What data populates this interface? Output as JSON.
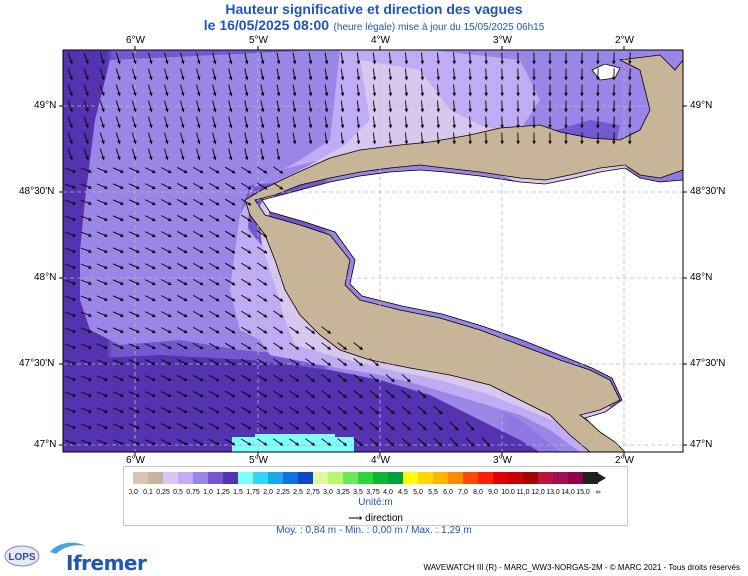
{
  "header": {
    "title": "Hauteur significative et direction des vagues",
    "date": "le 16/05/2025 08:00",
    "subtitle": "(heure légale) mise à jour du 15/05/2025 06h15"
  },
  "map": {
    "lon_labels": [
      "6°W",
      "5°W",
      "4°W",
      "3°W",
      "2°W"
    ],
    "lat_labels": [
      "49°N",
      "48°30'N",
      "48°N",
      "47°30'N",
      "47°N"
    ],
    "land_color": "#c8b496",
    "coast_color": "#000000",
    "interior_color": "#ffffff",
    "arrow_color": "#000000"
  },
  "legend": {
    "labels": [
      "0,0",
      "0,1",
      "0,25",
      "0,5",
      "0,75",
      "1,0",
      "1,25",
      "1,5",
      "1,75",
      "2,0",
      "2,25",
      "2,5",
      "2,75",
      "3,0",
      "3,25",
      "3,5",
      "3,75",
      "4,0",
      "4,5",
      "5,0",
      "5,5",
      "6,0",
      "7,0",
      "8,0",
      "9,0",
      "10,0",
      "11,0",
      "12,0",
      "13,0",
      "14,0",
      "15,0",
      "∞"
    ],
    "colors": [
      "#d8c4b4",
      "#cbb29e",
      "#d8c8f0",
      "#c0acf4",
      "#9a86e6",
      "#7358d0",
      "#5532b0",
      "#80ffff",
      "#30d8f0",
      "#1aa8e8",
      "#1070e0",
      "#0e46c8",
      "#dcfc9a",
      "#b4f86c",
      "#6ce85a",
      "#28d838",
      "#10b430",
      "#00a040",
      "#ffff00",
      "#ffd800",
      "#ffb400",
      "#ff8c00",
      "#ff4800",
      "#ff1e00",
      "#e00000",
      "#c80000",
      "#a80000",
      "#b81440",
      "#a01050",
      "#900050",
      "#202020"
    ],
    "unit": "Unité:m",
    "direction_label": "direction"
  },
  "stats": {
    "text": "Moy. : 0,84 m  -  Min. : 0,00 m / Max. : 1,29 m"
  },
  "footer": {
    "text": "WAVEWATCH III (R) - MARC_WW3-NORGAS-2M - © MARC 2021 - Tous droits réservés",
    "brand": "Ifremer",
    "lops": "LOPS"
  }
}
